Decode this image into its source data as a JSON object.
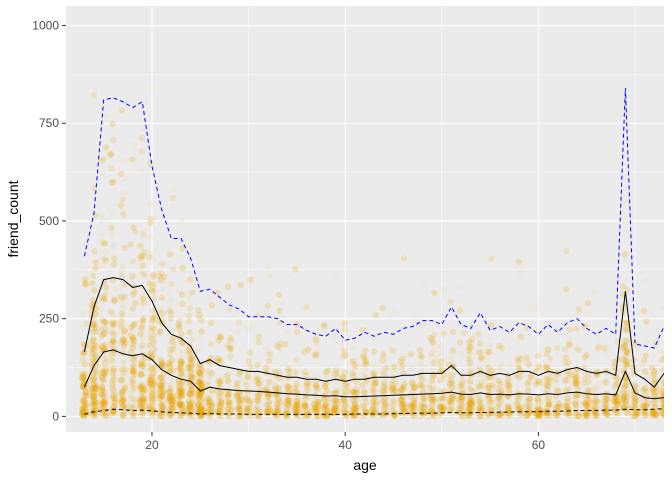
{
  "chart_data": {
    "type": "scatter",
    "xlabel": "age",
    "ylabel": "friend_count",
    "xlim": [
      13,
      73
    ],
    "ylim": [
      0,
      1000
    ],
    "x_ticks": [
      20,
      40,
      60
    ],
    "y_ticks": [
      0,
      250,
      500,
      750,
      1000
    ],
    "x_tick_labels": [
      "20",
      "40",
      "60"
    ],
    "y_tick_labels": [
      "0",
      "250",
      "500",
      "750",
      "1000"
    ],
    "grid": true,
    "legend": "none",
    "point_color": "#F4A900",
    "panel_background": "#EBEBEB",
    "scatter_points_note_free": true,
    "lines": [
      {
        "style": "dashed",
        "color": "#0000FF",
        "x": [
          13,
          14,
          15,
          16,
          17,
          18,
          19,
          20,
          21,
          22,
          23,
          24,
          25,
          26,
          27,
          28,
          29,
          30,
          31,
          32,
          33,
          34,
          35,
          36,
          37,
          38,
          39,
          40,
          41,
          42,
          43,
          44,
          45,
          46,
          47,
          48,
          49,
          50,
          51,
          52,
          53,
          54,
          55,
          56,
          57,
          58,
          59,
          60,
          61,
          62,
          63,
          64,
          65,
          66,
          67,
          68,
          69,
          70,
          71,
          72,
          73
        ],
        "y": [
          410,
          520,
          810,
          815,
          805,
          790,
          805,
          640,
          530,
          455,
          455,
          405,
          320,
          325,
          305,
          285,
          275,
          255,
          255,
          255,
          250,
          235,
          235,
          220,
          210,
          205,
          225,
          195,
          200,
          215,
          205,
          215,
          210,
          225,
          230,
          245,
          245,
          235,
          280,
          235,
          225,
          265,
          220,
          230,
          215,
          240,
          230,
          210,
          235,
          215,
          240,
          250,
          225,
          210,
          225,
          210,
          840,
          185,
          180,
          175,
          230
        ]
      },
      {
        "style": "solid",
        "color": "#000000",
        "x": [
          13,
          14,
          15,
          16,
          17,
          18,
          19,
          20,
          21,
          22,
          23,
          24,
          25,
          26,
          27,
          28,
          29,
          30,
          31,
          32,
          33,
          34,
          35,
          36,
          37,
          38,
          39,
          40,
          41,
          42,
          43,
          44,
          45,
          46,
          47,
          48,
          49,
          50,
          51,
          52,
          53,
          54,
          55,
          56,
          57,
          58,
          59,
          60,
          61,
          62,
          63,
          64,
          65,
          66,
          67,
          68,
          69,
          70,
          71,
          72,
          73
        ],
        "y": [
          165,
          280,
          350,
          355,
          350,
          330,
          335,
          295,
          240,
          210,
          200,
          180,
          135,
          145,
          130,
          125,
          120,
          115,
          115,
          110,
          105,
          100,
          100,
          95,
          95,
          90,
          95,
          90,
          95,
          95,
          100,
          100,
          100,
          105,
          105,
          110,
          110,
          110,
          130,
          105,
          105,
          115,
          105,
          110,
          105,
          115,
          115,
          105,
          115,
          110,
          120,
          125,
          115,
          110,
          115,
          105,
          320,
          110,
          95,
          75,
          110
        ]
      },
      {
        "style": "solid",
        "color": "#000000",
        "x": [
          13,
          14,
          15,
          16,
          17,
          18,
          19,
          20,
          21,
          22,
          23,
          24,
          25,
          26,
          27,
          28,
          29,
          30,
          31,
          32,
          33,
          34,
          35,
          36,
          37,
          38,
          39,
          40,
          41,
          42,
          43,
          44,
          45,
          46,
          47,
          48,
          49,
          50,
          51,
          52,
          53,
          54,
          55,
          56,
          57,
          58,
          59,
          60,
          61,
          62,
          63,
          64,
          65,
          66,
          67,
          68,
          69,
          70,
          71,
          72,
          73
        ],
        "y": [
          75,
          130,
          165,
          170,
          160,
          155,
          160,
          145,
          120,
          105,
          95,
          90,
          65,
          75,
          70,
          68,
          66,
          65,
          64,
          62,
          60,
          58,
          57,
          55,
          54,
          52,
          53,
          50,
          50,
          51,
          52,
          53,
          54,
          55,
          56,
          57,
          58,
          59,
          62,
          57,
          56,
          60,
          56,
          57,
          55,
          58,
          57,
          55,
          58,
          56,
          60,
          62,
          58,
          56,
          58,
          55,
          115,
          60,
          48,
          45,
          48
        ]
      },
      {
        "style": "dashed",
        "color": "#000000",
        "x": [
          13,
          14,
          15,
          16,
          17,
          18,
          19,
          20,
          21,
          22,
          23,
          24,
          25,
          26,
          27,
          28,
          29,
          30,
          31,
          32,
          33,
          34,
          35,
          36,
          37,
          38,
          39,
          40,
          41,
          42,
          43,
          44,
          45,
          46,
          47,
          48,
          49,
          50,
          51,
          52,
          53,
          54,
          55,
          56,
          57,
          58,
          59,
          60,
          61,
          62,
          63,
          64,
          65,
          66,
          67,
          68,
          69,
          70,
          71,
          72,
          73
        ],
        "y": [
          5,
          12,
          15,
          18,
          17,
          15,
          16,
          14,
          12,
          10,
          9,
          8,
          6,
          7,
          6,
          6,
          6,
          5,
          5,
          5,
          5,
          5,
          5,
          5,
          5,
          5,
          5,
          5,
          6,
          6,
          6,
          6,
          7,
          7,
          8,
          8,
          8,
          9,
          10,
          9,
          9,
          10,
          10,
          11,
          11,
          12,
          12,
          12,
          13,
          13,
          14,
          15,
          15,
          15,
          16,
          16,
          18,
          17,
          17,
          18,
          20
        ]
      }
    ]
  }
}
